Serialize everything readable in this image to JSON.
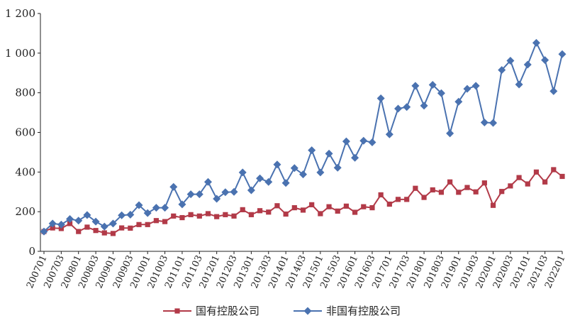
{
  "chart_data": {
    "type": "line",
    "title": "",
    "xlabel": "",
    "ylabel": "",
    "ylim": [
      0,
      1200
    ],
    "yticks": [
      0,
      200,
      400,
      600,
      800,
      1000,
      1200
    ],
    "ytick_labels": [
      "0",
      "200",
      "400",
      "600",
      "800",
      "1 000",
      "1 200"
    ],
    "x": [
      "200701",
      "200702",
      "200703",
      "200704",
      "200801",
      "200802",
      "200803",
      "200804",
      "200901",
      "200902",
      "200903",
      "200904",
      "201001",
      "201002",
      "201003",
      "201004",
      "201101",
      "201102",
      "201103",
      "201104",
      "201201",
      "201202",
      "201203",
      "201204",
      "201301",
      "201302",
      "201303",
      "201304",
      "201401",
      "201402",
      "201403",
      "201404",
      "201501",
      "201502",
      "201503",
      "201504",
      "201601",
      "201602",
      "201603",
      "201604",
      "201701",
      "201702",
      "201703",
      "201704",
      "201801",
      "201802",
      "201803",
      "201804",
      "201901",
      "201902",
      "201903",
      "201904",
      "202001",
      "202002",
      "202003",
      "202004",
      "202101",
      "202102",
      "202103",
      "202104",
      "202201"
    ],
    "x_tick_labels": [
      "200701",
      "200703",
      "200801",
      "200803",
      "200901",
      "200903",
      "201001",
      "201003",
      "201101",
      "201103",
      "201201",
      "201203",
      "201301",
      "201303",
      "201401",
      "201403",
      "201501",
      "201503",
      "201601",
      "201603",
      "201701",
      "201703",
      "201801",
      "201803",
      "201901",
      "201903",
      "202001",
      "202003",
      "202101",
      "202103",
      "202201"
    ],
    "grid": false,
    "legend_position": "bottom",
    "series": [
      {
        "name": "国有控股公司",
        "color": "#b23a48",
        "marker": "square",
        "values": [
          100,
          118,
          115,
          140,
          100,
          122,
          105,
          93,
          90,
          118,
          117,
          135,
          135,
          155,
          150,
          178,
          170,
          185,
          178,
          190,
          175,
          185,
          178,
          210,
          185,
          205,
          198,
          230,
          188,
          220,
          208,
          235,
          190,
          225,
          203,
          228,
          197,
          225,
          220,
          285,
          238,
          262,
          262,
          318,
          272,
          310,
          298,
          350,
          298,
          322,
          300,
          345,
          232,
          302,
          330,
          372,
          340,
          400,
          350,
          412,
          378
        ]
      },
      {
        "name": "非国有控股公司",
        "color": "#4a72b0",
        "marker": "diamond",
        "values": [
          100,
          140,
          135,
          163,
          155,
          183,
          150,
          125,
          140,
          182,
          185,
          233,
          193,
          220,
          220,
          325,
          237,
          288,
          288,
          350,
          265,
          298,
          300,
          398,
          308,
          368,
          350,
          438,
          345,
          420,
          388,
          510,
          398,
          493,
          422,
          555,
          472,
          558,
          550,
          772,
          590,
          720,
          728,
          835,
          735,
          840,
          798,
          595,
          755,
          820,
          835,
          650,
          648,
          915,
          962,
          842,
          942,
          1052,
          965,
          808,
          995
        ]
      }
    ]
  }
}
